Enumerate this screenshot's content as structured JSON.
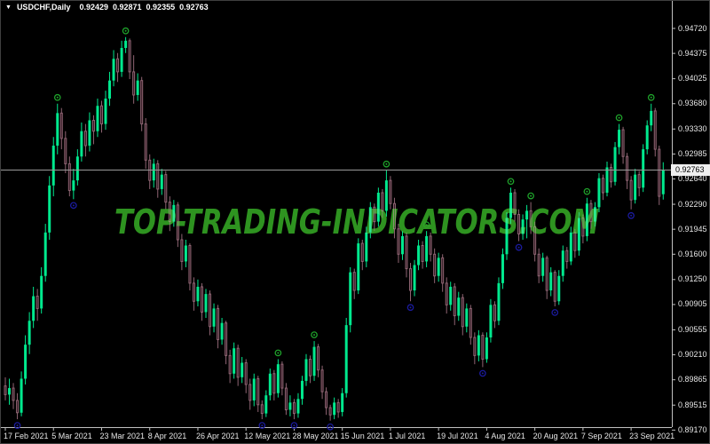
{
  "window": {
    "title": {
      "dropdown_icon": "▼",
      "symbol": "USDCHF,Daily",
      "open": "0.92429",
      "high": "0.92871",
      "low": "0.92355",
      "close": "0.92763"
    }
  },
  "watermark": {
    "text": "TOP-TRADING-INDICATORS.COM",
    "color": "#2e9320"
  },
  "chart_data": {
    "type": "candlestick",
    "symbol": "USDCHF",
    "timeframe": "Daily",
    "background": "#000000",
    "grid": false,
    "ylim": [
      0.8921,
      0.9472
    ],
    "colors": {
      "bull": "#00e98e",
      "bear_border": "#8f6573",
      "bear_fill": "#2b151d",
      "axis_line": "#c0c0c0",
      "window_border": "#3f3f3f",
      "price_line": "#9a9a9a",
      "price_tag_bg": "#f0f0f0",
      "price_tag_text": "#000000",
      "high_marker": "#1fa32b",
      "low_marker": "#1b1b9e",
      "label_text": "#e6e6e6"
    },
    "price_axis": {
      "labels": [
        "0.94720",
        "0.94375",
        "0.94025",
        "0.93680",
        "0.93330",
        "0.92985",
        "0.92640",
        "0.92290",
        "0.91945",
        "0.91600",
        "0.91250",
        "0.90905",
        "0.90555",
        "0.90210",
        "0.89865",
        "0.89515",
        "0.89170"
      ],
      "current_price": "0.92763"
    },
    "time_axis": {
      "labels": [
        {
          "text": "17 Feb 2021",
          "candle": 0
        },
        {
          "text": "5 Mar 2021",
          "candle": 12
        },
        {
          "text": "23 Mar 2021",
          "candle": 24
        },
        {
          "text": "8 Apr 2021",
          "candle": 36
        },
        {
          "text": "26 Apr 2021",
          "candle": 48
        },
        {
          "text": "12 May 2021",
          "candle": 60
        },
        {
          "text": "28 May 2021",
          "candle": 72
        },
        {
          "text": "15 Jun 2021",
          "candle": 84
        },
        {
          "text": "1 Jul 2021",
          "candle": 96
        },
        {
          "text": "19 Jul 2021",
          "candle": 108
        },
        {
          "text": "4 Aug 2021",
          "candle": 120
        },
        {
          "text": "20 Aug 2021",
          "candle": 132
        },
        {
          "text": "7 Sep 2021",
          "candle": 144
        },
        {
          "text": "23 Sep 2021",
          "candle": 156
        }
      ]
    },
    "candles": [
      [
        0.8978,
        0.899,
        0.8958,
        0.8966
      ],
      [
        0.8966,
        0.8988,
        0.8952,
        0.8975
      ],
      [
        0.8975,
        0.8982,
        0.8946,
        0.8958
      ],
      [
        0.8958,
        0.8968,
        0.8932,
        0.8941
      ],
      [
        0.8941,
        0.8998,
        0.8936,
        0.8988
      ],
      [
        0.8988,
        0.9048,
        0.898,
        0.9035
      ],
      [
        0.9035,
        0.908,
        0.9022,
        0.9068
      ],
      [
        0.9068,
        0.9115,
        0.9058,
        0.9102
      ],
      [
        0.9102,
        0.9112,
        0.9068,
        0.9085
      ],
      [
        0.9085,
        0.9142,
        0.9078,
        0.913
      ],
      [
        0.913,
        0.9202,
        0.9122,
        0.919
      ],
      [
        0.919,
        0.9268,
        0.918,
        0.9255
      ],
      [
        0.9255,
        0.9322,
        0.924,
        0.931
      ],
      [
        0.931,
        0.9368,
        0.9298,
        0.9355
      ],
      [
        0.9355,
        0.9362,
        0.9305,
        0.932
      ],
      [
        0.932,
        0.933,
        0.9272,
        0.9285
      ],
      [
        0.9285,
        0.9295,
        0.924,
        0.9248
      ],
      [
        0.9248,
        0.9278,
        0.9236,
        0.9262
      ],
      [
        0.9262,
        0.9305,
        0.9255,
        0.9295
      ],
      [
        0.9295,
        0.9342,
        0.9288,
        0.933
      ],
      [
        0.933,
        0.934,
        0.9295,
        0.931
      ],
      [
        0.931,
        0.9356,
        0.9302,
        0.9345
      ],
      [
        0.9345,
        0.9352,
        0.9312,
        0.933
      ],
      [
        0.933,
        0.9375,
        0.9322,
        0.9365
      ],
      [
        0.9365,
        0.9372,
        0.9328,
        0.934
      ],
      [
        0.934,
        0.9386,
        0.9332,
        0.9375
      ],
      [
        0.9375,
        0.9412,
        0.9365,
        0.94
      ],
      [
        0.94,
        0.9442,
        0.9392,
        0.943
      ],
      [
        0.943,
        0.9438,
        0.9398,
        0.9412
      ],
      [
        0.9412,
        0.9455,
        0.9405,
        0.9445
      ],
      [
        0.9445,
        0.946,
        0.9438,
        0.9455
      ],
      [
        0.9455,
        0.9458,
        0.9402,
        0.9412
      ],
      [
        0.9412,
        0.9435,
        0.9368,
        0.938
      ],
      [
        0.938,
        0.941,
        0.9372,
        0.94
      ],
      [
        0.94,
        0.9405,
        0.933,
        0.934
      ],
      [
        0.934,
        0.9348,
        0.9278,
        0.929
      ],
      [
        0.929,
        0.9298,
        0.925,
        0.9262
      ],
      [
        0.9262,
        0.9292,
        0.9252,
        0.9285
      ],
      [
        0.9285,
        0.929,
        0.9238,
        0.925
      ],
      [
        0.925,
        0.9278,
        0.9242,
        0.927
      ],
      [
        0.927,
        0.9275,
        0.9222,
        0.9232
      ],
      [
        0.9232,
        0.924,
        0.9192,
        0.9205
      ],
      [
        0.9205,
        0.9235,
        0.9198,
        0.9228
      ],
      [
        0.9228,
        0.9232,
        0.917,
        0.918
      ],
      [
        0.918,
        0.9188,
        0.9138,
        0.915
      ],
      [
        0.915,
        0.918,
        0.9142,
        0.9172
      ],
      [
        0.9172,
        0.9175,
        0.911,
        0.912
      ],
      [
        0.912,
        0.9128,
        0.9082,
        0.9095
      ],
      [
        0.9095,
        0.9125,
        0.9088,
        0.9115
      ],
      [
        0.9115,
        0.912,
        0.9068,
        0.908
      ],
      [
        0.908,
        0.9112,
        0.9072,
        0.9105
      ],
      [
        0.9105,
        0.911,
        0.9048,
        0.906
      ],
      [
        0.906,
        0.9092,
        0.9052,
        0.9085
      ],
      [
        0.9085,
        0.909,
        0.903,
        0.9042
      ],
      [
        0.9042,
        0.9072,
        0.9035,
        0.9065
      ],
      [
        0.9065,
        0.9068,
        0.9008,
        0.902
      ],
      [
        0.902,
        0.9028,
        0.8982,
        0.8995
      ],
      [
        0.8995,
        0.9038,
        0.8988,
        0.903
      ],
      [
        0.903,
        0.9035,
        0.8978,
        0.899
      ],
      [
        0.899,
        0.9018,
        0.8982,
        0.901
      ],
      [
        0.901,
        0.9015,
        0.8968,
        0.898
      ],
      [
        0.898,
        0.8988,
        0.8945,
        0.8958
      ],
      [
        0.8958,
        0.8995,
        0.895,
        0.8988
      ],
      [
        0.8988,
        0.8992,
        0.8942,
        0.8952
      ],
      [
        0.8952,
        0.8958,
        0.8932,
        0.894
      ],
      [
        0.894,
        0.8972,
        0.8935,
        0.8965
      ],
      [
        0.8965,
        0.9002,
        0.8958,
        0.8995
      ],
      [
        0.8995,
        0.9,
        0.8958,
        0.8968
      ],
      [
        0.8968,
        0.9015,
        0.8962,
        0.9008
      ],
      [
        0.9008,
        0.9012,
        0.8965,
        0.8975
      ],
      [
        0.8975,
        0.8982,
        0.8938,
        0.8945
      ],
      [
        0.8945,
        0.8965,
        0.8936,
        0.8955
      ],
      [
        0.8955,
        0.896,
        0.8932,
        0.894
      ],
      [
        0.894,
        0.8968,
        0.8934,
        0.896
      ],
      [
        0.896,
        0.8992,
        0.8952,
        0.8985
      ],
      [
        0.8985,
        0.9022,
        0.8978,
        0.9015
      ],
      [
        0.9015,
        0.902,
        0.8982,
        0.8992
      ],
      [
        0.8992,
        0.904,
        0.8985,
        0.9032
      ],
      [
        0.9032,
        0.9036,
        0.899,
        0.9
      ],
      [
        0.9,
        0.9006,
        0.896,
        0.897
      ],
      [
        0.897,
        0.8976,
        0.8938,
        0.8948
      ],
      [
        0.8948,
        0.8952,
        0.893,
        0.8938
      ],
      [
        0.8938,
        0.8962,
        0.8932,
        0.8955
      ],
      [
        0.8955,
        0.896,
        0.8934,
        0.8942
      ],
      [
        0.8942,
        0.8975,
        0.8936,
        0.8968
      ],
      [
        0.8968,
        0.9072,
        0.8962,
        0.9062
      ],
      [
        0.9062,
        0.9142,
        0.9052,
        0.9135
      ],
      [
        0.9135,
        0.914,
        0.9098,
        0.911
      ],
      [
        0.911,
        0.9182,
        0.9105,
        0.9175
      ],
      [
        0.9175,
        0.918,
        0.9138,
        0.915
      ],
      [
        0.915,
        0.9198,
        0.9142,
        0.919
      ],
      [
        0.919,
        0.9232,
        0.9182,
        0.9225
      ],
      [
        0.9225,
        0.923,
        0.9192,
        0.9205
      ],
      [
        0.9205,
        0.9252,
        0.9198,
        0.9245
      ],
      [
        0.9245,
        0.925,
        0.921,
        0.922
      ],
      [
        0.922,
        0.9276,
        0.9212,
        0.9262
      ],
      [
        0.9262,
        0.9268,
        0.9222,
        0.923
      ],
      [
        0.923,
        0.9238,
        0.9182,
        0.9195
      ],
      [
        0.9195,
        0.9202,
        0.9148,
        0.916
      ],
      [
        0.916,
        0.9192,
        0.9152,
        0.9185
      ],
      [
        0.9185,
        0.919,
        0.9128,
        0.914
      ],
      [
        0.914,
        0.9148,
        0.9095,
        0.911
      ],
      [
        0.911,
        0.9152,
        0.9102,
        0.9145
      ],
      [
        0.9145,
        0.918,
        0.9138,
        0.9172
      ],
      [
        0.9172,
        0.9178,
        0.914,
        0.915
      ],
      [
        0.915,
        0.9192,
        0.9142,
        0.9185
      ],
      [
        0.9185,
        0.919,
        0.915,
        0.916
      ],
      [
        0.916,
        0.9168,
        0.912,
        0.913
      ],
      [
        0.913,
        0.9162,
        0.9122,
        0.9155
      ],
      [
        0.9155,
        0.916,
        0.9108,
        0.912
      ],
      [
        0.912,
        0.9128,
        0.9078,
        0.909
      ],
      [
        0.909,
        0.9122,
        0.9082,
        0.9115
      ],
      [
        0.9115,
        0.912,
        0.9062,
        0.9075
      ],
      [
        0.9075,
        0.9108,
        0.9068,
        0.91
      ],
      [
        0.91,
        0.9105,
        0.9048,
        0.906
      ],
      [
        0.906,
        0.9092,
        0.9052,
        0.9085
      ],
      [
        0.9085,
        0.909,
        0.9035,
        0.9045
      ],
      [
        0.9045,
        0.9052,
        0.9008,
        0.902
      ],
      [
        0.902,
        0.9055,
        0.9012,
        0.9048
      ],
      [
        0.9048,
        0.9052,
        0.9004,
        0.9015
      ],
      [
        0.9015,
        0.9052,
        0.901,
        0.9045
      ],
      [
        0.9045,
        0.9098,
        0.9038,
        0.909
      ],
      [
        0.909,
        0.9095,
        0.9058,
        0.9068
      ],
      [
        0.9068,
        0.9128,
        0.9062,
        0.912
      ],
      [
        0.912,
        0.9168,
        0.9112,
        0.916
      ],
      [
        0.916,
        0.9218,
        0.9152,
        0.921
      ],
      [
        0.921,
        0.9252,
        0.9202,
        0.9245
      ],
      [
        0.9245,
        0.925,
        0.9205,
        0.9215
      ],
      [
        0.9215,
        0.9222,
        0.9178,
        0.9188
      ],
      [
        0.9188,
        0.9215,
        0.918,
        0.9208
      ],
      [
        0.9208,
        0.9228,
        0.9182,
        0.922
      ],
      [
        0.922,
        0.9232,
        0.9188,
        0.9198
      ],
      [
        0.9198,
        0.9205,
        0.915,
        0.916
      ],
      [
        0.916,
        0.9168,
        0.912,
        0.913
      ],
      [
        0.913,
        0.9162,
        0.9122,
        0.9155
      ],
      [
        0.9155,
        0.9158,
        0.9098,
        0.911
      ],
      [
        0.911,
        0.9142,
        0.9102,
        0.9135
      ],
      [
        0.9135,
        0.9138,
        0.9088,
        0.9095
      ],
      [
        0.9095,
        0.9138,
        0.909,
        0.913
      ],
      [
        0.913,
        0.9172,
        0.9122,
        0.9165
      ],
      [
        0.9165,
        0.917,
        0.914,
        0.915
      ],
      [
        0.915,
        0.9198,
        0.9145,
        0.919
      ],
      [
        0.919,
        0.9195,
        0.9155,
        0.9165
      ],
      [
        0.9165,
        0.9218,
        0.9158,
        0.921
      ],
      [
        0.921,
        0.9215,
        0.9175,
        0.9185
      ],
      [
        0.9185,
        0.9238,
        0.9178,
        0.923
      ],
      [
        0.923,
        0.9235,
        0.9195,
        0.9205
      ],
      [
        0.9205,
        0.9232,
        0.9198,
        0.9225
      ],
      [
        0.9225,
        0.9272,
        0.9218,
        0.9265
      ],
      [
        0.9265,
        0.927,
        0.9235,
        0.9245
      ],
      [
        0.9245,
        0.9288,
        0.924,
        0.928
      ],
      [
        0.928,
        0.9285,
        0.9252,
        0.926
      ],
      [
        0.926,
        0.9315,
        0.9255,
        0.9308
      ],
      [
        0.9308,
        0.934,
        0.9298,
        0.9332
      ],
      [
        0.9332,
        0.9336,
        0.9285,
        0.9295
      ],
      [
        0.9295,
        0.93,
        0.925,
        0.9262
      ],
      [
        0.9262,
        0.9268,
        0.9222,
        0.9235
      ],
      [
        0.9235,
        0.9278,
        0.923,
        0.927
      ],
      [
        0.927,
        0.9275,
        0.924,
        0.9252
      ],
      [
        0.9252,
        0.9312,
        0.9246,
        0.9305
      ],
      [
        0.9305,
        0.9345,
        0.9298,
        0.9338
      ],
      [
        0.9338,
        0.9368,
        0.933,
        0.9358
      ],
      [
        0.9358,
        0.9362,
        0.9295,
        0.9305
      ],
      [
        0.9305,
        0.931,
        0.9228,
        0.924
      ],
      [
        0.92429,
        0.92871,
        0.92355,
        0.92763
      ]
    ]
  }
}
